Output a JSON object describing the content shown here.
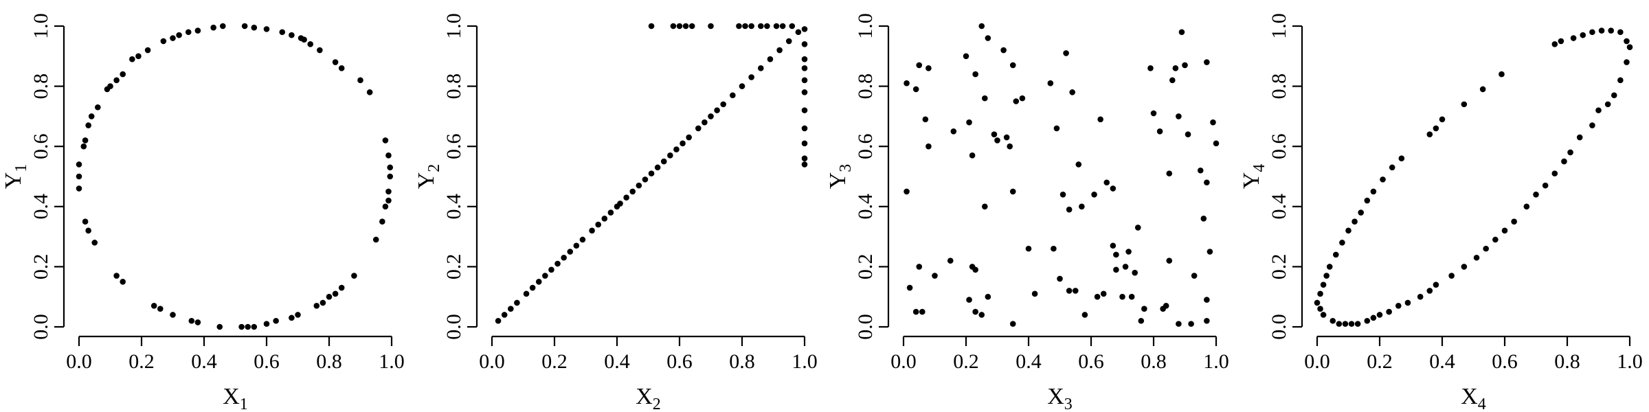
{
  "chart_data": [
    {
      "type": "scatter",
      "xlabel": "X",
      "xlabel_sub": "1",
      "ylabel": "Y",
      "ylabel_sub": "1",
      "xlim": [
        0,
        1
      ],
      "ylim": [
        0,
        1
      ],
      "x_ticks": [
        "0.0",
        "0.2",
        "0.4",
        "0.6",
        "0.8",
        "1.0"
      ],
      "y_ticks": [
        "0.0",
        "0.2",
        "0.4",
        "0.6",
        "0.8",
        "1.0"
      ],
      "grid": false,
      "points": [
        [
          0.46,
          1.0
        ],
        [
          0.53,
          1.0
        ],
        [
          0.56,
          0.995
        ],
        [
          0.6,
          0.99
        ],
        [
          0.43,
          0.995
        ],
        [
          0.38,
          0.985
        ],
        [
          0.35,
          0.98
        ],
        [
          0.32,
          0.97
        ],
        [
          0.3,
          0.96
        ],
        [
          0.27,
          0.95
        ],
        [
          0.22,
          0.92
        ],
        [
          0.19,
          0.9
        ],
        [
          0.17,
          0.89
        ],
        [
          0.14,
          0.84
        ],
        [
          0.12,
          0.82
        ],
        [
          0.1,
          0.8
        ],
        [
          0.09,
          0.79
        ],
        [
          0.06,
          0.73
        ],
        [
          0.04,
          0.7
        ],
        [
          0.03,
          0.67
        ],
        [
          0.02,
          0.62
        ],
        [
          0.015,
          0.6
        ],
        [
          0.0,
          0.54
        ],
        [
          0.0,
          0.5
        ],
        [
          0.0,
          0.46
        ],
        [
          0.02,
          0.35
        ],
        [
          0.03,
          0.32
        ],
        [
          0.05,
          0.28
        ],
        [
          0.12,
          0.17
        ],
        [
          0.14,
          0.15
        ],
        [
          0.24,
          0.07
        ],
        [
          0.26,
          0.06
        ],
        [
          0.3,
          0.04
        ],
        [
          0.36,
          0.02
        ],
        [
          0.38,
          0.015
        ],
        [
          0.45,
          0.0
        ],
        [
          0.52,
          0.0
        ],
        [
          0.54,
          0.0
        ],
        [
          0.56,
          0.0
        ],
        [
          0.6,
          0.01
        ],
        [
          0.63,
          0.02
        ],
        [
          0.68,
          0.03
        ],
        [
          0.7,
          0.04
        ],
        [
          0.76,
          0.07
        ],
        [
          0.78,
          0.08
        ],
        [
          0.8,
          0.1
        ],
        [
          0.82,
          0.11
        ],
        [
          0.84,
          0.13
        ],
        [
          0.88,
          0.17
        ],
        [
          0.95,
          0.29
        ],
        [
          0.97,
          0.35
        ],
        [
          0.98,
          0.4
        ],
        [
          0.99,
          0.42
        ],
        [
          0.99,
          0.45
        ],
        [
          0.995,
          0.5
        ],
        [
          0.995,
          0.53
        ],
        [
          0.99,
          0.57
        ],
        [
          0.98,
          0.62
        ],
        [
          0.93,
          0.78
        ],
        [
          0.9,
          0.82
        ],
        [
          0.84,
          0.86
        ],
        [
          0.82,
          0.88
        ],
        [
          0.77,
          0.92
        ],
        [
          0.74,
          0.94
        ],
        [
          0.72,
          0.955
        ],
        [
          0.71,
          0.96
        ],
        [
          0.68,
          0.97
        ],
        [
          0.65,
          0.98
        ]
      ]
    },
    {
      "type": "scatter",
      "xlabel": "X",
      "xlabel_sub": "2",
      "ylabel": "Y",
      "ylabel_sub": "2",
      "xlim": [
        0,
        1
      ],
      "ylim": [
        0,
        1
      ],
      "x_ticks": [
        "0.0",
        "0.2",
        "0.4",
        "0.6",
        "0.8",
        "1.0"
      ],
      "y_ticks": [
        "0.0",
        "0.2",
        "0.4",
        "0.6",
        "0.8",
        "1.0"
      ],
      "grid": false,
      "points": [
        [
          0.02,
          0.02
        ],
        [
          0.04,
          0.04
        ],
        [
          0.06,
          0.06
        ],
        [
          0.08,
          0.08
        ],
        [
          0.11,
          0.11
        ],
        [
          0.13,
          0.13
        ],
        [
          0.15,
          0.15
        ],
        [
          0.17,
          0.17
        ],
        [
          0.19,
          0.19
        ],
        [
          0.21,
          0.21
        ],
        [
          0.23,
          0.23
        ],
        [
          0.25,
          0.25
        ],
        [
          0.27,
          0.27
        ],
        [
          0.29,
          0.29
        ],
        [
          0.32,
          0.32
        ],
        [
          0.34,
          0.34
        ],
        [
          0.36,
          0.36
        ],
        [
          0.38,
          0.38
        ],
        [
          0.4,
          0.4
        ],
        [
          0.41,
          0.41
        ],
        [
          0.43,
          0.43
        ],
        [
          0.45,
          0.45
        ],
        [
          0.47,
          0.47
        ],
        [
          0.49,
          0.49
        ],
        [
          0.51,
          0.51
        ],
        [
          0.53,
          0.53
        ],
        [
          0.55,
          0.55
        ],
        [
          0.57,
          0.57
        ],
        [
          0.59,
          0.59
        ],
        [
          0.61,
          0.61
        ],
        [
          0.63,
          0.63
        ],
        [
          0.66,
          0.66
        ],
        [
          0.68,
          0.68
        ],
        [
          0.7,
          0.7
        ],
        [
          0.72,
          0.72
        ],
        [
          0.74,
          0.74
        ],
        [
          0.77,
          0.77
        ],
        [
          0.8,
          0.8
        ],
        [
          0.83,
          0.83
        ],
        [
          0.86,
          0.86
        ],
        [
          0.89,
          0.89
        ],
        [
          0.92,
          0.92
        ],
        [
          0.95,
          0.95
        ],
        [
          0.98,
          0.98
        ],
        [
          0.51,
          1.0
        ],
        [
          0.58,
          1.0
        ],
        [
          0.6,
          1.0
        ],
        [
          0.62,
          1.0
        ],
        [
          0.64,
          1.0
        ],
        [
          0.7,
          1.0
        ],
        [
          0.79,
          1.0
        ],
        [
          0.81,
          1.0
        ],
        [
          0.83,
          1.0
        ],
        [
          0.86,
          1.0
        ],
        [
          0.88,
          1.0
        ],
        [
          0.91,
          1.0
        ],
        [
          0.93,
          1.0
        ],
        [
          0.96,
          1.0
        ],
        [
          1.0,
          0.99
        ],
        [
          1.0,
          0.94
        ],
        [
          1.0,
          0.89
        ],
        [
          1.0,
          0.86
        ],
        [
          1.0,
          0.82
        ],
        [
          1.0,
          0.78
        ],
        [
          1.0,
          0.72
        ],
        [
          1.0,
          0.66
        ],
        [
          1.0,
          0.61
        ],
        [
          1.0,
          0.56
        ],
        [
          1.0,
          0.54
        ]
      ]
    },
    {
      "type": "scatter",
      "xlabel": "X",
      "xlabel_sub": "3",
      "ylabel": "Y",
      "ylabel_sub": "3",
      "xlim": [
        0,
        1
      ],
      "ylim": [
        0,
        1
      ],
      "x_ticks": [
        "0.0",
        "0.2",
        "0.4",
        "0.6",
        "0.8",
        "1.0"
      ],
      "y_ticks": [
        "0.0",
        "0.2",
        "0.4",
        "0.6",
        "0.8",
        "1.0"
      ],
      "grid": false,
      "points": [
        [
          0.01,
          0.81
        ],
        [
          0.04,
          0.79
        ],
        [
          0.05,
          0.87
        ],
        [
          0.08,
          0.86
        ],
        [
          0.07,
          0.69
        ],
        [
          0.08,
          0.6
        ],
        [
          0.01,
          0.45
        ],
        [
          0.02,
          0.13
        ],
        [
          0.05,
          0.2
        ],
        [
          0.04,
          0.05
        ],
        [
          0.06,
          0.05
        ],
        [
          0.1,
          0.17
        ],
        [
          0.15,
          0.22
        ],
        [
          0.2,
          0.9
        ],
        [
          0.23,
          0.84
        ],
        [
          0.25,
          1.0
        ],
        [
          0.27,
          0.96
        ],
        [
          0.26,
          0.76
        ],
        [
          0.21,
          0.68
        ],
        [
          0.16,
          0.65
        ],
        [
          0.22,
          0.57
        ],
        [
          0.26,
          0.4
        ],
        [
          0.29,
          0.64
        ],
        [
          0.3,
          0.62
        ],
        [
          0.32,
          0.92
        ],
        [
          0.35,
          0.87
        ],
        [
          0.36,
          0.75
        ],
        [
          0.38,
          0.76
        ],
        [
          0.33,
          0.63
        ],
        [
          0.34,
          0.6
        ],
        [
          0.35,
          0.45
        ],
        [
          0.22,
          0.2
        ],
        [
          0.23,
          0.19
        ],
        [
          0.21,
          0.09
        ],
        [
          0.23,
          0.05
        ],
        [
          0.25,
          0.04
        ],
        [
          0.27,
          0.1
        ],
        [
          0.35,
          0.01
        ],
        [
          0.4,
          0.26
        ],
        [
          0.42,
          0.11
        ],
        [
          0.47,
          0.81
        ],
        [
          0.49,
          0.66
        ],
        [
          0.52,
          0.91
        ],
        [
          0.54,
          0.78
        ],
        [
          0.51,
          0.44
        ],
        [
          0.53,
          0.39
        ],
        [
          0.56,
          0.54
        ],
        [
          0.61,
          0.44
        ],
        [
          0.63,
          0.69
        ],
        [
          0.65,
          0.48
        ],
        [
          0.67,
          0.46
        ],
        [
          0.64,
          0.11
        ],
        [
          0.57,
          0.4
        ],
        [
          0.48,
          0.26
        ],
        [
          0.5,
          0.16
        ],
        [
          0.53,
          0.12
        ],
        [
          0.55,
          0.12
        ],
        [
          0.58,
          0.04
        ],
        [
          0.62,
          0.1
        ],
        [
          0.67,
          0.27
        ],
        [
          0.68,
          0.24
        ],
        [
          0.68,
          0.19
        ],
        [
          0.7,
          0.1
        ],
        [
          0.72,
          0.25
        ],
        [
          0.71,
          0.2
        ],
        [
          0.73,
          0.1
        ],
        [
          0.74,
          0.18
        ],
        [
          0.75,
          0.33
        ],
        [
          0.77,
          0.06
        ],
        [
          0.76,
          0.02
        ],
        [
          0.79,
          0.86
        ],
        [
          0.8,
          0.71
        ],
        [
          0.82,
          0.65
        ],
        [
          0.86,
          0.82
        ],
        [
          0.87,
          0.86
        ],
        [
          0.89,
          0.98
        ],
        [
          0.9,
          0.87
        ],
        [
          0.91,
          0.64
        ],
        [
          0.88,
          0.7
        ],
        [
          0.85,
          0.51
        ],
        [
          0.83,
          0.06
        ],
        [
          0.84,
          0.07
        ],
        [
          0.85,
          0.22
        ],
        [
          0.88,
          0.01
        ],
        [
          0.92,
          0.01
        ],
        [
          0.93,
          0.17
        ],
        [
          0.95,
          0.52
        ],
        [
          0.97,
          0.48
        ],
        [
          0.96,
          0.36
        ],
        [
          0.97,
          0.88
        ],
        [
          0.99,
          0.68
        ],
        [
          1.0,
          0.61
        ],
        [
          0.98,
          0.25
        ],
        [
          0.97,
          0.09
        ],
        [
          0.97,
          0.02
        ]
      ]
    },
    {
      "type": "scatter",
      "xlabel": "X",
      "xlabel_sub": "4",
      "ylabel": "Y",
      "ylabel_sub": "4",
      "xlim": [
        0,
        1
      ],
      "ylim": [
        0,
        1
      ],
      "x_ticks": [
        "0.0",
        "0.2",
        "0.4",
        "0.6",
        "0.8",
        "1.0"
      ],
      "y_ticks": [
        "0.0",
        "0.2",
        "0.4",
        "0.6",
        "0.8",
        "1.0"
      ],
      "grid": false,
      "points": [
        [
          0.05,
          0.02
        ],
        [
          0.07,
          0.01
        ],
        [
          0.09,
          0.01
        ],
        [
          0.11,
          0.01
        ],
        [
          0.13,
          0.01
        ],
        [
          0.16,
          0.02
        ],
        [
          0.18,
          0.03
        ],
        [
          0.2,
          0.04
        ],
        [
          0.23,
          0.05
        ],
        [
          0.26,
          0.07
        ],
        [
          0.29,
          0.08
        ],
        [
          0.33,
          0.1
        ],
        [
          0.36,
          0.12
        ],
        [
          0.38,
          0.14
        ],
        [
          0.43,
          0.17
        ],
        [
          0.47,
          0.2
        ],
        [
          0.51,
          0.23
        ],
        [
          0.54,
          0.26
        ],
        [
          0.57,
          0.29
        ],
        [
          0.6,
          0.32
        ],
        [
          0.63,
          0.35
        ],
        [
          0.67,
          0.4
        ],
        [
          0.7,
          0.44
        ],
        [
          0.73,
          0.47
        ],
        [
          0.76,
          0.51
        ],
        [
          0.79,
          0.55
        ],
        [
          0.81,
          0.58
        ],
        [
          0.84,
          0.63
        ],
        [
          0.88,
          0.67
        ],
        [
          0.9,
          0.72
        ],
        [
          0.93,
          0.74
        ],
        [
          0.95,
          0.77
        ],
        [
          0.97,
          0.82
        ],
        [
          0.99,
          0.88
        ],
        [
          1.0,
          0.93
        ],
        [
          0.99,
          0.95
        ],
        [
          0.97,
          0.98
        ],
        [
          0.94,
          0.985
        ],
        [
          0.91,
          0.985
        ],
        [
          0.88,
          0.98
        ],
        [
          0.85,
          0.97
        ],
        [
          0.82,
          0.96
        ],
        [
          0.78,
          0.95
        ],
        [
          0.76,
          0.94
        ],
        [
          0.02,
          0.04
        ],
        [
          0.01,
          0.06
        ],
        [
          0.0,
          0.08
        ],
        [
          0.01,
          0.11
        ],
        [
          0.02,
          0.14
        ],
        [
          0.03,
          0.17
        ],
        [
          0.04,
          0.2
        ],
        [
          0.06,
          0.24
        ],
        [
          0.08,
          0.28
        ],
        [
          0.1,
          0.32
        ],
        [
          0.12,
          0.35
        ],
        [
          0.14,
          0.38
        ],
        [
          0.16,
          0.42
        ],
        [
          0.18,
          0.45
        ],
        [
          0.21,
          0.49
        ],
        [
          0.24,
          0.53
        ],
        [
          0.27,
          0.56
        ],
        [
          0.36,
          0.64
        ],
        [
          0.38,
          0.66
        ],
        [
          0.4,
          0.69
        ],
        [
          0.47,
          0.74
        ],
        [
          0.53,
          0.79
        ],
        [
          0.59,
          0.84
        ]
      ]
    }
  ]
}
